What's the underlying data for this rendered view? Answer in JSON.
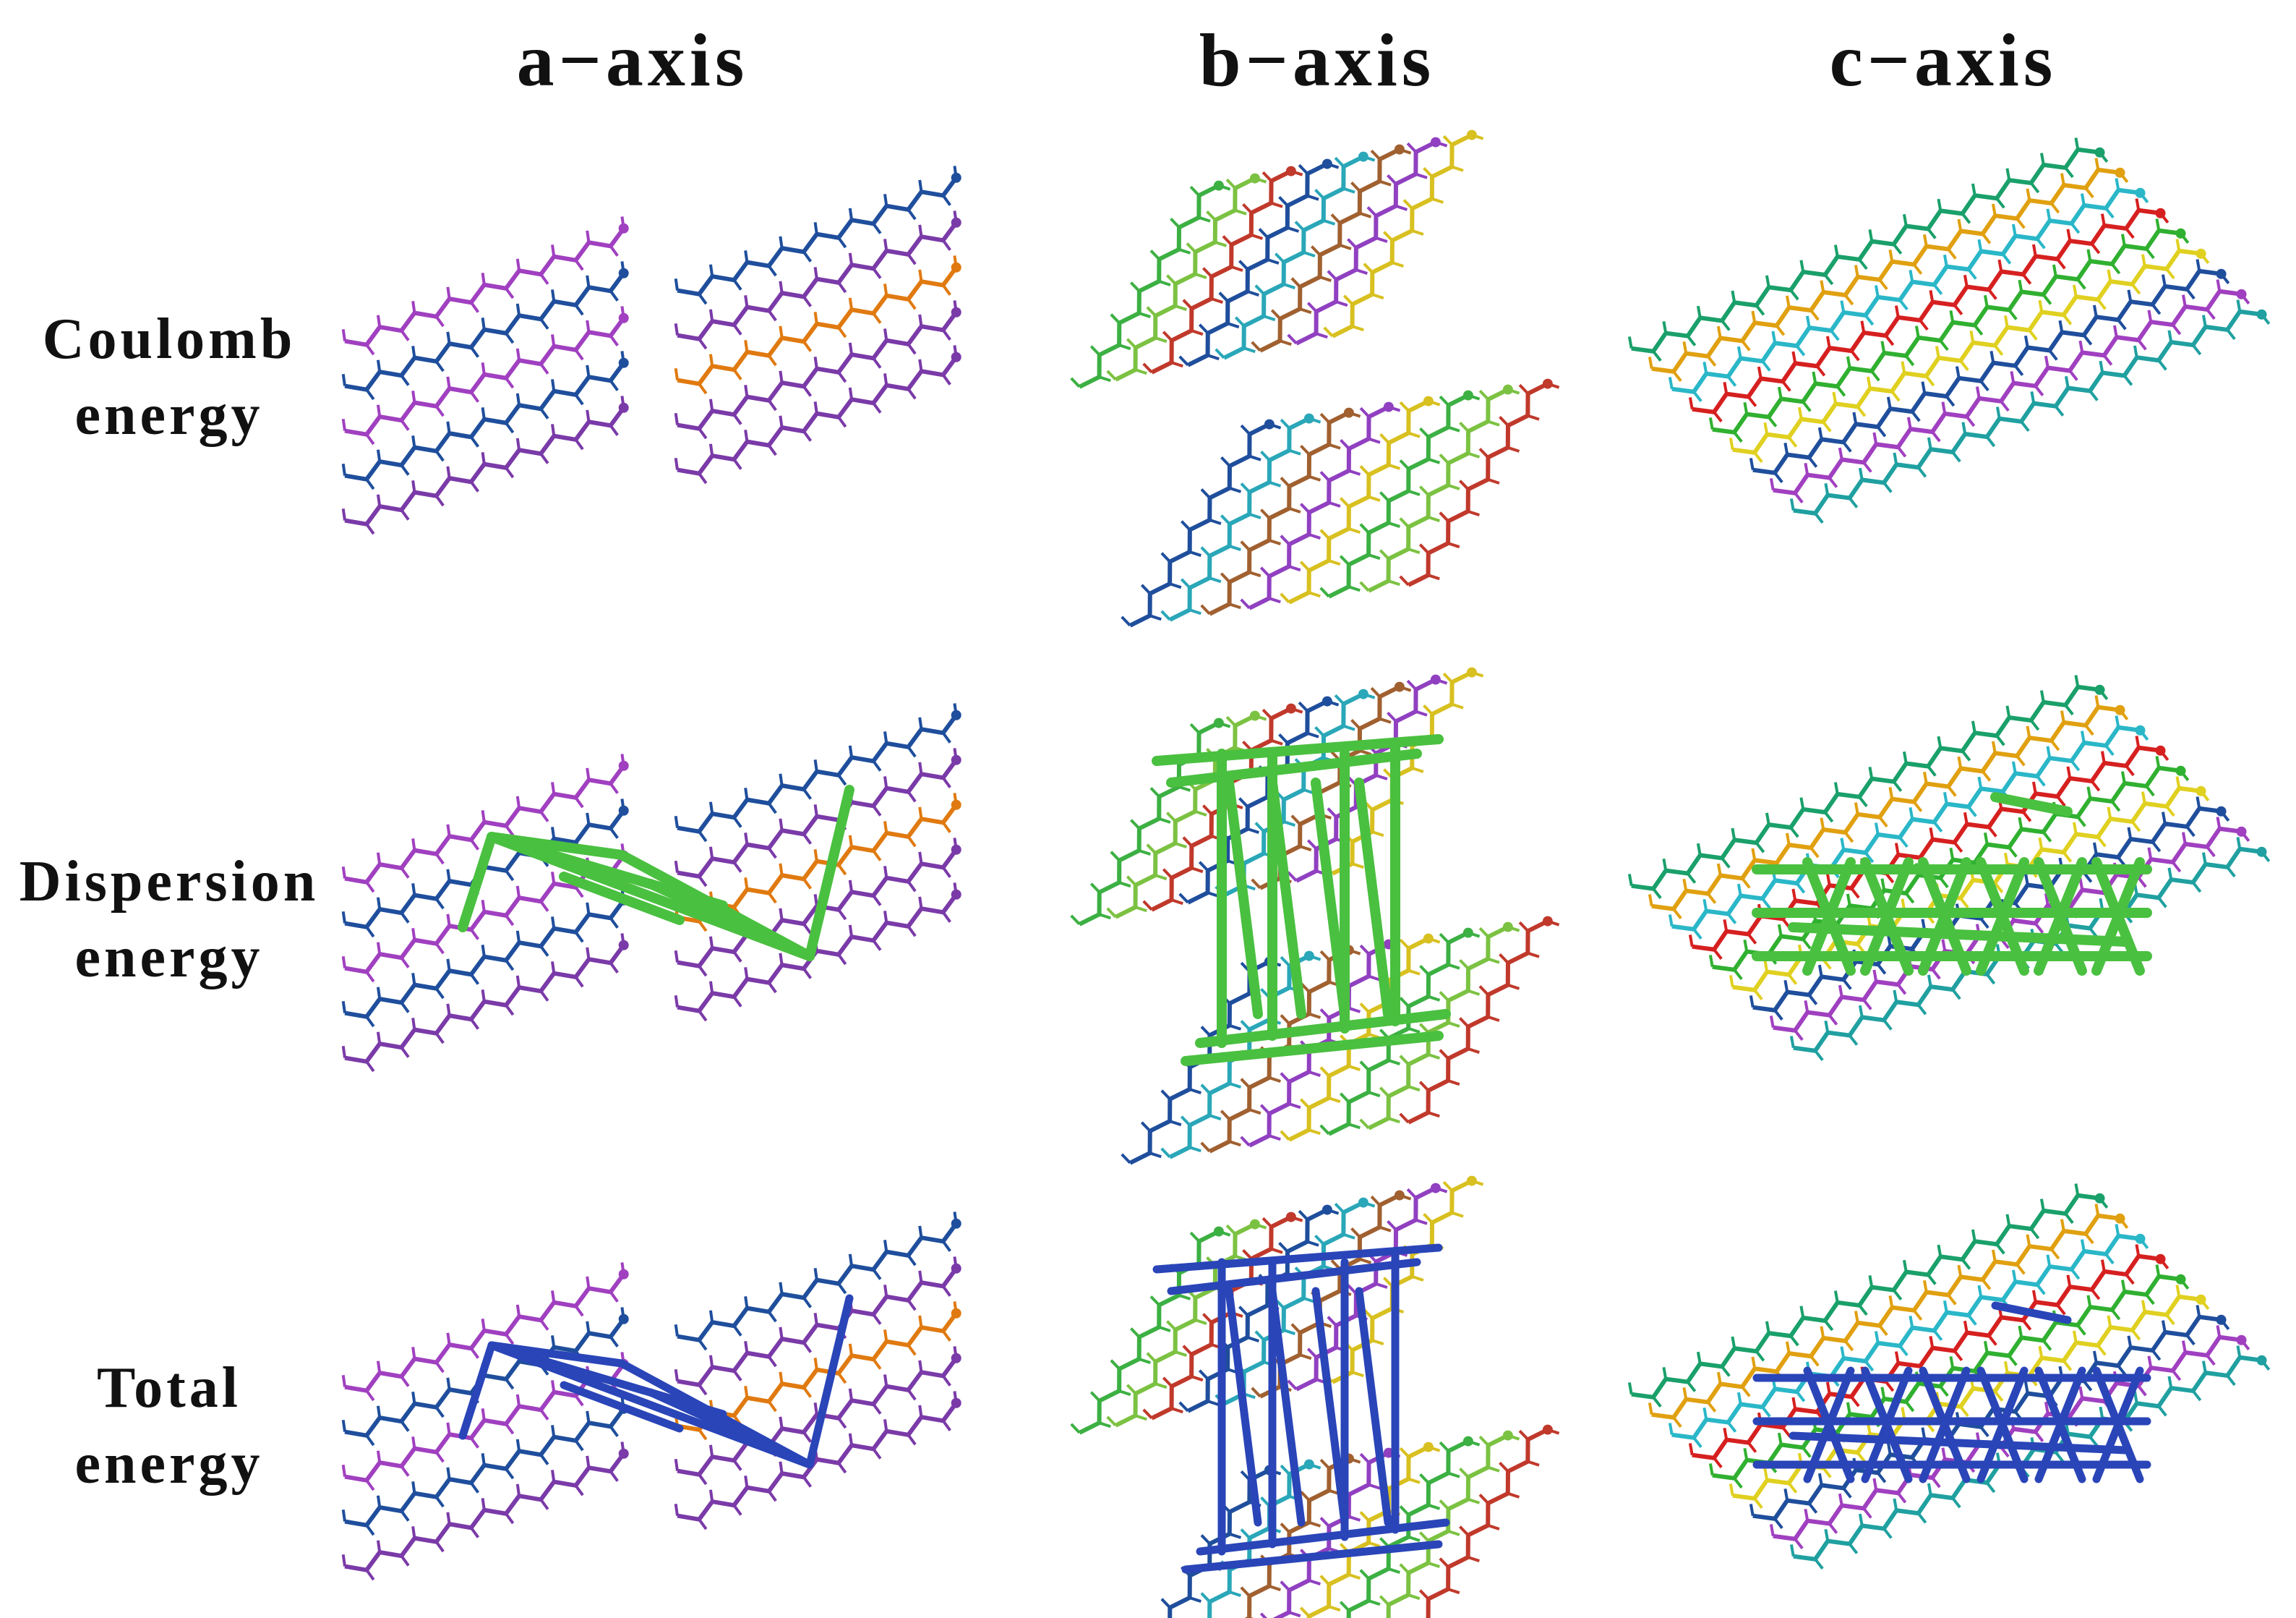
{
  "header": {
    "columns": [
      "a−axis",
      "b−axis",
      "c−axis"
    ]
  },
  "rows": [
    {
      "label": [
        "Coulomb",
        "energy"
      ]
    },
    {
      "label": [
        "Dispersion",
        "energy"
      ]
    },
    {
      "label": [
        "Total",
        "energy"
      ]
    }
  ]
}
